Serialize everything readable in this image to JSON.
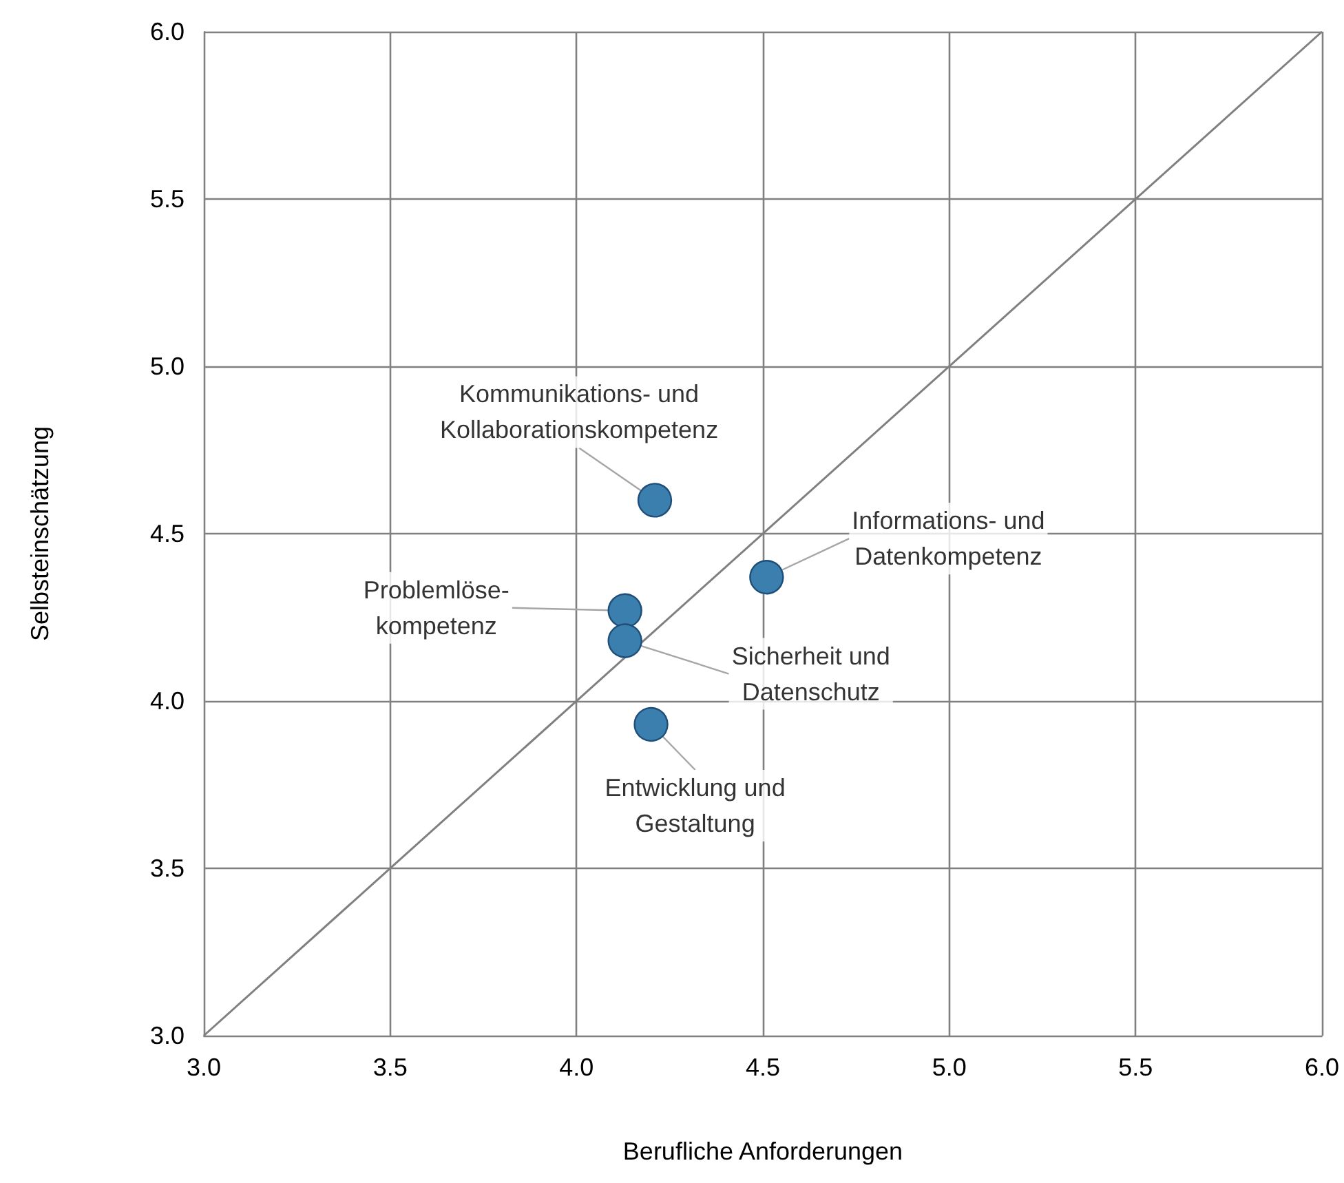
{
  "chart_data": {
    "type": "scatter",
    "xlabel": "Berufliche Anforderungen",
    "ylabel": "Selbsteinschätzung",
    "xlim": [
      3,
      6
    ],
    "ylim": [
      3,
      6
    ],
    "xticks": [
      {
        "value": 3,
        "label": "3.0"
      },
      {
        "value": 3.5,
        "label": "3.5"
      },
      {
        "value": 4,
        "label": "4.0"
      },
      {
        "value": 4.5,
        "label": "4.5"
      },
      {
        "value": 5,
        "label": "5.0"
      },
      {
        "value": 5.5,
        "label": "5.5"
      },
      {
        "value": 6,
        "label": "6.0"
      }
    ],
    "yticks": [
      {
        "value": 3,
        "label": "3.0"
      },
      {
        "value": 3.5,
        "label": "3.5"
      },
      {
        "value": 4,
        "label": "4.0"
      },
      {
        "value": 4.5,
        "label": "4.5"
      },
      {
        "value": 5,
        "label": "5.0"
      },
      {
        "value": 5.5,
        "label": "5.5"
      },
      {
        "value": 6,
        "label": "6.0"
      }
    ],
    "grid": true,
    "marker": "circle",
    "series": [
      {
        "color": "#3a7fad",
        "x": [
          4.21,
          4.51,
          4.13,
          4.13,
          4.2
        ],
        "values": [
          4.6,
          4.37,
          4.27,
          4.18,
          3.93
        ]
      },
      {
        "type": "line",
        "color": "#808080",
        "x": [
          3,
          6
        ],
        "values": [
          3,
          6
        ],
        "marker": "none",
        "line_style": "solid"
      }
    ],
    "annotations": [
      {
        "text": "Kommunikations- und\nKollaborationskompetenz",
        "x": 4.21,
        "y": 4.6
      },
      {
        "text": "Informations- und\nDatenkompetenz",
        "x": 4.51,
        "y": 4.37
      },
      {
        "text": "Problemlöse-\nkompetenz",
        "x": 4.13,
        "y": 4.27
      },
      {
        "text": "Sicherheit und\nDatenschutz",
        "x": 4.13,
        "y": 4.18
      },
      {
        "text": "Entwicklung und\nGestaltung",
        "x": 4.2,
        "y": 3.93
      }
    ]
  }
}
